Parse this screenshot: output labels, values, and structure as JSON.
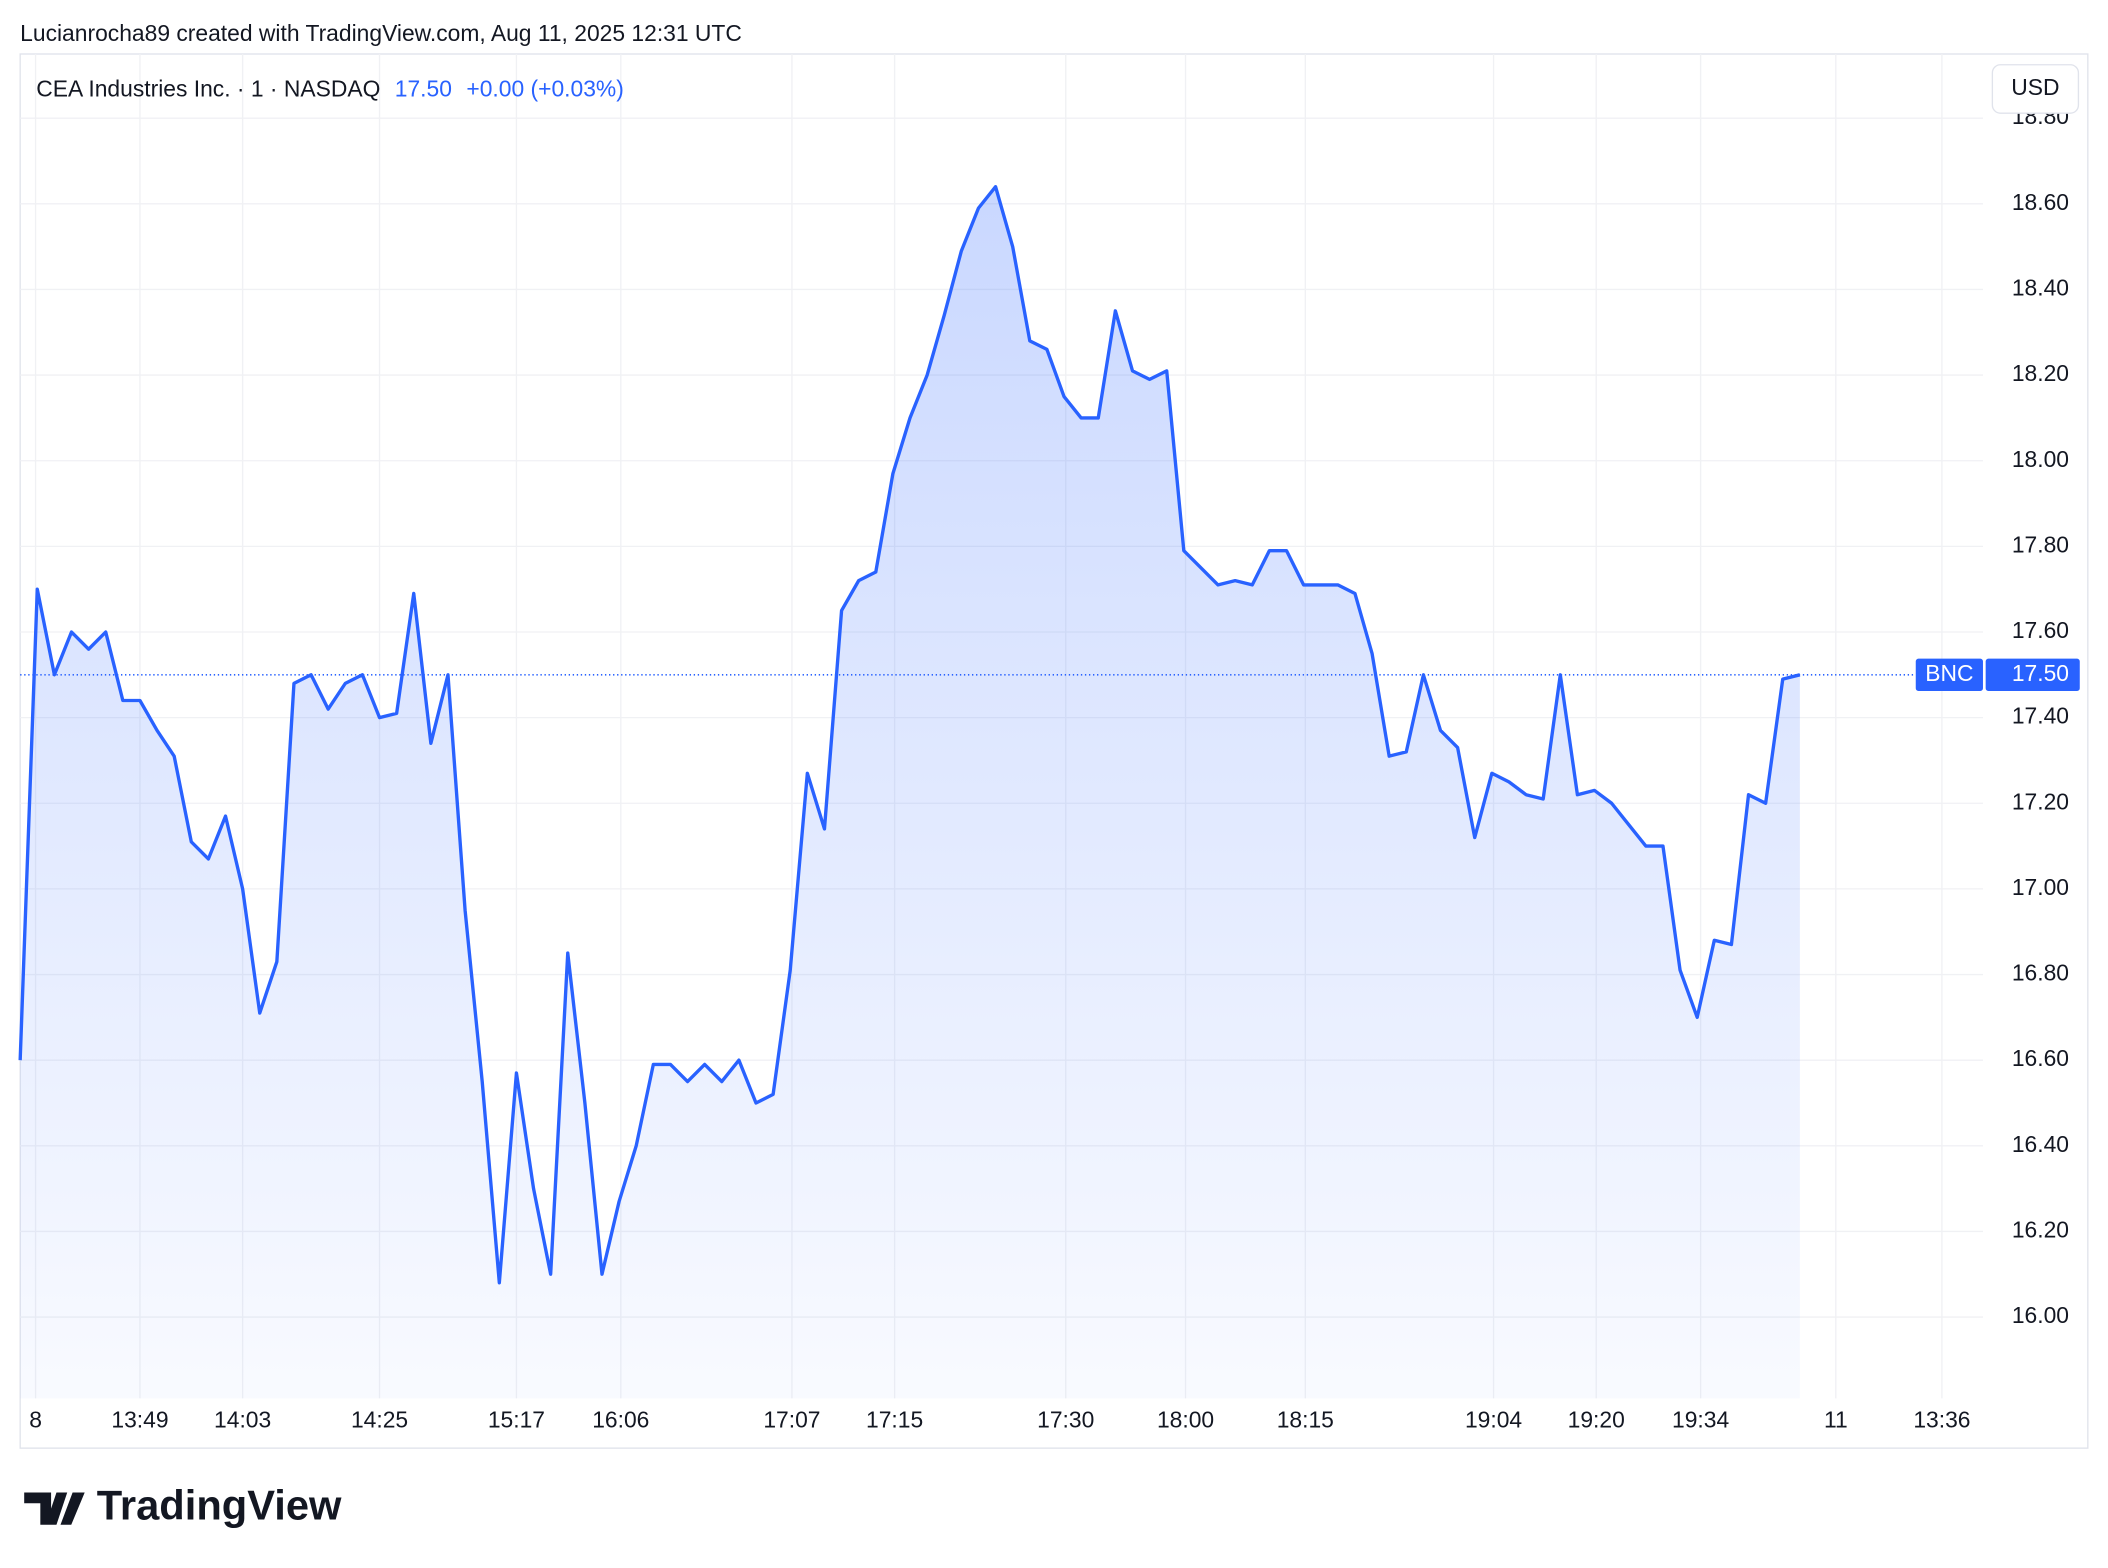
{
  "attribution": "Lucianrocha89 created with TradingView.com, Aug 11, 2025 12:31 UTC",
  "brand": "TradingView",
  "chart_data": {
    "type": "area",
    "title": "CEA Industries Inc. · 1 · NASDAQ",
    "last_value": {
      "value": 17.5,
      "label": "17.50"
    },
    "change": "+0.00 (+0.03%)",
    "currency": "USD",
    "symbol_badge": "BNC",
    "grid": true,
    "ylim": [
      15.81,
      18.95
    ],
    "yticks": [
      {
        "value": 16,
        "label": "16.00"
      },
      {
        "value": 16.2,
        "label": "16.20"
      },
      {
        "value": 16.4,
        "label": "16.40"
      },
      {
        "value": 16.6,
        "label": "16.60"
      },
      {
        "value": 16.8,
        "label": "16.80"
      },
      {
        "value": 17,
        "label": "17.00"
      },
      {
        "value": 17.2,
        "label": "17.20"
      },
      {
        "value": 17.4,
        "label": "17.40"
      },
      {
        "value": 17.6,
        "label": "17.60"
      },
      {
        "value": 17.8,
        "label": "17.80"
      },
      {
        "value": 18,
        "label": "18.00"
      },
      {
        "value": 18.2,
        "label": "18.20"
      },
      {
        "value": 18.4,
        "label": "18.40"
      },
      {
        "value": 18.6,
        "label": "18.60"
      },
      {
        "value": 18.8,
        "label": "18.80"
      }
    ],
    "xlim": [
      0,
      114.7
    ],
    "xticks": [
      {
        "value": 0.9,
        "label": "8"
      },
      {
        "value": 7,
        "label": "13:49"
      },
      {
        "value": 13,
        "label": "14:03"
      },
      {
        "value": 21,
        "label": "14:25"
      },
      {
        "value": 29,
        "label": "15:17"
      },
      {
        "value": 35.1,
        "label": "16:06"
      },
      {
        "value": 45.1,
        "label": "17:07"
      },
      {
        "value": 51.1,
        "label": "17:15"
      },
      {
        "value": 61.1,
        "label": "17:30"
      },
      {
        "value": 68.1,
        "label": "18:00"
      },
      {
        "value": 75.1,
        "label": "18:15"
      },
      {
        "value": 86.1,
        "label": "19:04"
      },
      {
        "value": 92.1,
        "label": "19:20"
      },
      {
        "value": 98.2,
        "label": "19:34"
      },
      {
        "value": 106.1,
        "label": "11"
      },
      {
        "value": 112.3,
        "label": "13:36"
      }
    ],
    "series": [
      {
        "color": "#2962ff",
        "values": [
          16.6,
          17.7,
          17.5,
          17.6,
          17.56,
          17.6,
          17.44,
          17.44,
          17.37,
          17.31,
          17.11,
          17.07,
          17.17,
          17.0,
          16.71,
          16.83,
          17.48,
          17.5,
          17.42,
          17.48,
          17.5,
          17.4,
          17.41,
          17.69,
          17.34,
          17.5,
          16.95,
          16.55,
          16.08,
          16.57,
          16.3,
          16.1,
          16.85,
          16.5,
          16.1,
          16.27,
          16.4,
          16.59,
          16.59,
          16.55,
          16.59,
          16.55,
          16.6,
          16.5,
          16.52,
          16.81,
          17.27,
          17.14,
          17.65,
          17.72,
          17.74,
          17.97,
          18.1,
          18.2,
          18.34,
          18.49,
          18.59,
          18.64,
          18.5,
          18.28,
          18.26,
          18.15,
          18.1,
          18.1,
          18.35,
          18.21,
          18.19,
          18.21,
          17.79,
          17.75,
          17.71,
          17.72,
          17.71,
          17.79,
          17.79,
          17.71,
          17.71,
          17.71,
          17.69,
          17.55,
          17.31,
          17.32,
          17.5,
          17.37,
          17.33,
          17.12,
          17.27,
          17.25,
          17.22,
          17.21,
          17.5,
          17.22,
          17.23,
          17.2,
          17.15,
          17.1,
          17.1,
          16.81,
          16.7,
          16.88,
          16.87,
          17.22,
          17.2,
          17.49,
          17.5
        ]
      }
    ]
  }
}
